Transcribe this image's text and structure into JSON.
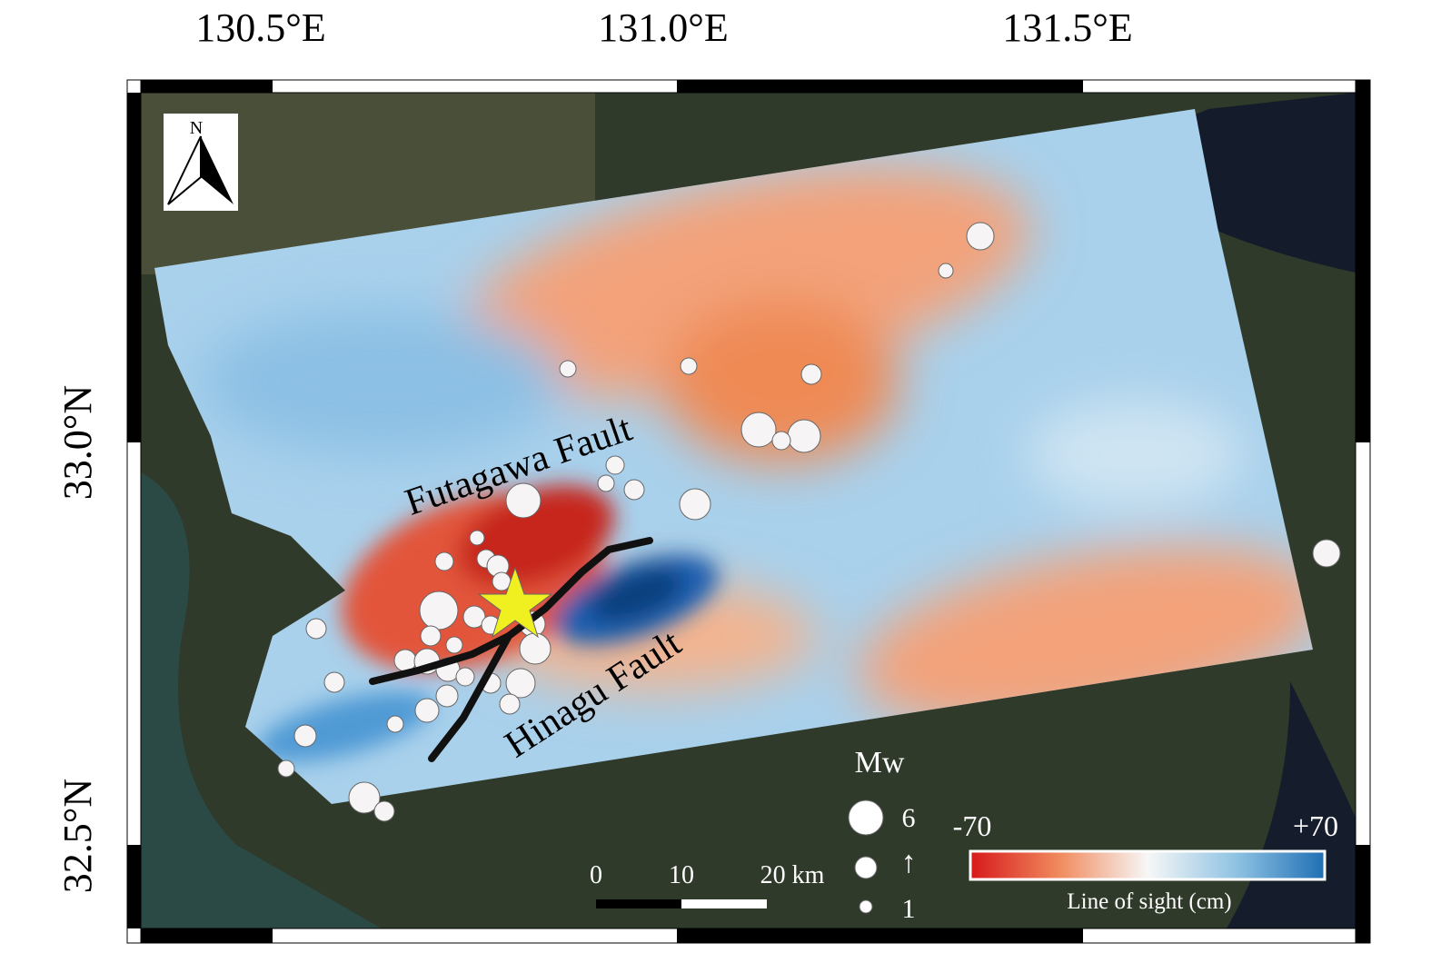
{
  "axes": {
    "top_labels": [
      "130.5°E",
      "131.0°E",
      "131.5°E"
    ],
    "left_labels": [
      "33.0°N",
      "32.5°N"
    ]
  },
  "north_arrow": "N",
  "annotations": {
    "futagawa": "Futagawa Fault",
    "hinagu": "Hinagu Fault"
  },
  "magnitude_legend": {
    "title": "Mw",
    "max": "6",
    "arrow": "↑",
    "min": "1"
  },
  "scale_bar": {
    "labels": [
      "0",
      "10",
      "20 km"
    ]
  },
  "colorbar": {
    "min": "-70",
    "max": "+70",
    "label": "Line of sight (cm)"
  }
}
